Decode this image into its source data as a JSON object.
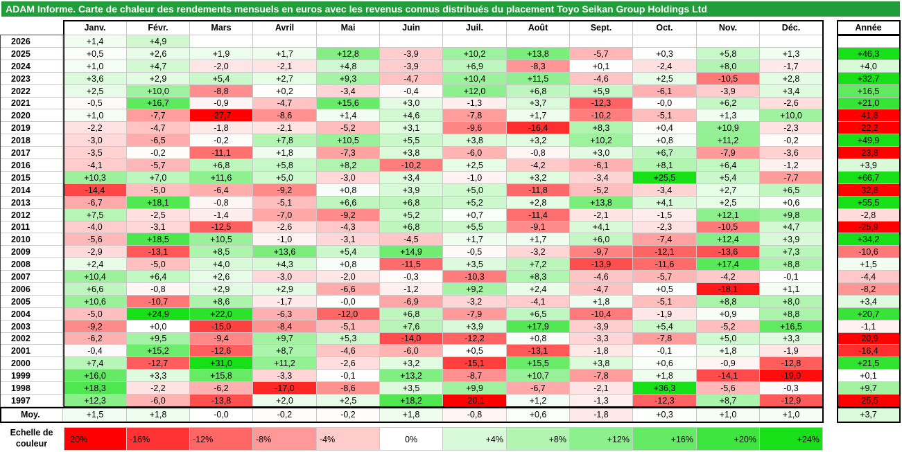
{
  "chart_data": {
    "type": "heatmap",
    "title": "ADAM Informe. Carte de chaleur des rendements mensuels en euros avec les revenus connus distribués du placement Toyo Seikan Group Holdings Ltd",
    "columns": [
      "Janv.",
      "Févr.",
      "Mars",
      "Avril",
      "Mai",
      "Juin",
      "Juil.",
      "Août",
      "Sept.",
      "Oct.",
      "Nov.",
      "Déc."
    ],
    "annual_header": "Année",
    "rows": [
      {
        "year": "2026",
        "values": [
          "+1,4",
          "+4,9",
          "",
          "",
          "",
          "",
          "",
          "",
          "",
          "",
          "",
          ""
        ],
        "annual": ""
      },
      {
        "year": "2025",
        "values": [
          "+0,5",
          "+2,6",
          "+1,9",
          "+1,7",
          "+12,8",
          "-3,9",
          "+10,2",
          "+13,8",
          "-5,7",
          "+0,3",
          "+5,8",
          "+1,3"
        ],
        "annual": "+46,3"
      },
      {
        "year": "2024",
        "values": [
          "+1,0",
          "+4,7",
          "-2,0",
          "-2,1",
          "+4,8",
          "-3,9",
          "+6,9",
          "-8,3",
          "+0,1",
          "-2,4",
          "+8,0",
          "-1,7"
        ],
        "annual": "+4,0"
      },
      {
        "year": "2023",
        "values": [
          "+3,6",
          "+2,9",
          "+5,4",
          "+2,7",
          "+9,3",
          "-4,7",
          "+10,4",
          "+11,5",
          "-4,6",
          "+2,5",
          "-10,5",
          "+2,8"
        ],
        "annual": "+32,7"
      },
      {
        "year": "2022",
        "values": [
          "+2,5",
          "+10,0",
          "-8,8",
          "+0,2",
          "-3,4",
          "-0,4",
          "+12,0",
          "+6,8",
          "+5,9",
          "-6,1",
          "-3,9",
          "+3,4"
        ],
        "annual": "+16,5"
      },
      {
        "year": "2021",
        "values": [
          "-0,5",
          "+16,7",
          "-0,9",
          "-4,7",
          "+15,6",
          "+3,0",
          "-1,3",
          "+3,7",
          "-12,3",
          "-0,0",
          "+6,2",
          "-2,6"
        ],
        "annual": "+21,0"
      },
      {
        "year": "2020",
        "values": [
          "+1,0",
          "-7,7",
          "-27,7",
          "-8,6",
          "+1,4",
          "+4,6",
          "-7,8",
          "+1,7",
          "-10,2",
          "-5,1",
          "+1,3",
          "+10,0"
        ],
        "annual": "-41,8"
      },
      {
        "year": "2019",
        "values": [
          "-2,2",
          "-4,7",
          "-1,8",
          "-2,1",
          "-5,2",
          "+3,1",
          "-9,6",
          "-16,4",
          "+8,3",
          "+0,4",
          "+10,9",
          "-2,3"
        ],
        "annual": "-22,2"
      },
      {
        "year": "2018",
        "values": [
          "-3,0",
          "-6,5",
          "-0,2",
          "+7,8",
          "+10,5",
          "+5,5",
          "+3,8",
          "+3,2",
          "+10,2",
          "+0,8",
          "+11,2",
          "-0,2"
        ],
        "annual": "+49,9"
      },
      {
        "year": "2017",
        "values": [
          "-3,5",
          "-0,2",
          "-11,1",
          "+1,8",
          "-7,3",
          "+3,8",
          "-6,0",
          "-0,8",
          "+3,0",
          "+6,7",
          "-7,9",
          "-3,6"
        ],
        "annual": "-23,8"
      },
      {
        "year": "2016",
        "values": [
          "-4,1",
          "-5,7",
          "+6,8",
          "+5,8",
          "+8,2",
          "-10,2",
          "+2,5",
          "-4,2",
          "-6,1",
          "+8,1",
          "+6,4",
          "-1,2"
        ],
        "annual": "+3,9"
      },
      {
        "year": "2015",
        "values": [
          "+10,3",
          "+7,0",
          "+11,6",
          "+5,0",
          "-3,0",
          "+3,4",
          "-1,0",
          "+3,2",
          "-3,4",
          "+25,5",
          "+5,4",
          "-7,7"
        ],
        "annual": "+66,7"
      },
      {
        "year": "2014",
        "values": [
          "-14,4",
          "-5,0",
          "-6,4",
          "-9,2",
          "+0,8",
          "+3,9",
          "+5,0",
          "-11,8",
          "-5,2",
          "-3,4",
          "+2,7",
          "+6,5"
        ],
        "annual": "-32,8"
      },
      {
        "year": "2013",
        "values": [
          "-6,7",
          "+18,1",
          "-0,8",
          "-5,1",
          "+6,6",
          "+6,8",
          "+5,2",
          "+2,8",
          "+13,8",
          "+4,1",
          "+2,5",
          "+0,6"
        ],
        "annual": "+55,5"
      },
      {
        "year": "2012",
        "values": [
          "+7,5",
          "-2,5",
          "-1,4",
          "-7,0",
          "-9,2",
          "+5,2",
          "+0,7",
          "-11,4",
          "-2,1",
          "-1,5",
          "+12,1",
          "+9,8"
        ],
        "annual": "-2,8"
      },
      {
        "year": "2011",
        "values": [
          "-4,0",
          "-3,1",
          "-12,5",
          "-2,6",
          "-4,3",
          "+6,8",
          "+5,5",
          "-9,1",
          "+4,1",
          "-2,3",
          "-10,5",
          "+4,7"
        ],
        "annual": "-25,9"
      },
      {
        "year": "2010",
        "values": [
          "-5,6",
          "+18,5",
          "+10,5",
          "-1,0",
          "-3,1",
          "-4,5",
          "+1,7",
          "+1,7",
          "+6,0",
          "-7,4",
          "+12,4",
          "+3,9"
        ],
        "annual": "+34,2"
      },
      {
        "year": "2009",
        "values": [
          "-2,9",
          "-13,1",
          "+8,5",
          "+13,6",
          "+5,4",
          "+14,9",
          "-0,5",
          "-3,2",
          "-9,7",
          "-12,1",
          "-13,6",
          "+7,3"
        ],
        "annual": "-10,6"
      },
      {
        "year": "2008",
        "values": [
          "+2,4",
          "-5,0",
          "+4,0",
          "+4,3",
          "+0,8",
          "-11,5",
          "+3,5",
          "+7,2",
          "-13,9",
          "-11,6",
          "+17,4",
          "+8,8"
        ],
        "annual": "+1,5"
      },
      {
        "year": "2007",
        "values": [
          "+10,4",
          "+6,4",
          "+2,6",
          "-3,0",
          "-2,0",
          "-0,3",
          "-10,3",
          "+8,3",
          "-4,6",
          "-5,7",
          "-4,2",
          "-0,1"
        ],
        "annual": "-4,4"
      },
      {
        "year": "2006",
        "values": [
          "+6,6",
          "-0,8",
          "+2,9",
          "+2,9",
          "-6,6",
          "-1,2",
          "+9,2",
          "+2,4",
          "-4,7",
          "+0,5",
          "-18,1",
          "+1,1"
        ],
        "annual": "-8,2"
      },
      {
        "year": "2005",
        "values": [
          "+10,6",
          "-10,7",
          "+8,6",
          "-1,7",
          "-0,0",
          "-6,9",
          "-3,2",
          "-4,1",
          "+1,8",
          "-5,1",
          "+8,8",
          "+8,0"
        ],
        "annual": "+3,4"
      },
      {
        "year": "2004",
        "values": [
          "-5,0",
          "+24,9",
          "+22,0",
          "-6,3",
          "-12,0",
          "+6,8",
          "-7,9",
          "+6,5",
          "-10,4",
          "-1,9",
          "+0,9",
          "+8,8"
        ],
        "annual": "+20,7"
      },
      {
        "year": "2003",
        "values": [
          "-9,2",
          "+0,0",
          "-15,0",
          "-8,4",
          "-5,1",
          "+7,6",
          "+3,9",
          "+17,9",
          "-3,9",
          "+5,4",
          "-5,2",
          "+16,5"
        ],
        "annual": "-1,1"
      },
      {
        "year": "2002",
        "values": [
          "-6,2",
          "+9,5",
          "-9,4",
          "+9,7",
          "+5,3",
          "-14,0",
          "-12,2",
          "+0,8",
          "-3,3",
          "-7,8",
          "+5,0",
          "+3,3"
        ],
        "annual": "-20,9"
      },
      {
        "year": "2001",
        "values": [
          "-0,4",
          "+15,2",
          "-12,6",
          "+8,7",
          "-4,6",
          "-6,0",
          "+0,5",
          "-13,1",
          "-1,8",
          "-0,1",
          "+1,8",
          "-1,9"
        ],
        "annual": "-16,4"
      },
      {
        "year": "2000",
        "values": [
          "+7,4",
          "-12,7",
          "+31,0",
          "+11,2",
          "-2,6",
          "+3,2",
          "-15,1",
          "+15,5",
          "+3,8",
          "+0,6",
          "-0,9",
          "-12,8"
        ],
        "annual": "+21,5"
      },
      {
        "year": "1999",
        "values": [
          "+16,0",
          "+3,3",
          "+15,8",
          "-3,3",
          "-0,1",
          "+13,2",
          "-8,7",
          "+10,7",
          "-7,8",
          "+1,8",
          "-14,1",
          "-19,0"
        ],
        "annual": "+0,1"
      },
      {
        "year": "1998",
        "values": [
          "+18,3",
          "-2,2",
          "-6,2",
          "-17,0",
          "-8,6",
          "+3,5",
          "+9,9",
          "-6,7",
          "-2,1",
          "+36,3",
          "-5,6",
          "-0,3"
        ],
        "annual": "+9,7"
      },
      {
        "year": "1997",
        "values": [
          "+12,3",
          "-6,0",
          "-13,8",
          "+2,0",
          "+2,5",
          "+18,2",
          "-20,1",
          "+1,2",
          "-1,3",
          "-12,3",
          "+8,7",
          "-12,9"
        ],
        "annual": "-25,5"
      }
    ],
    "average": {
      "label": "Moy.",
      "values": [
        "+1,5",
        "+1,8",
        "-0,0",
        "-0,2",
        "-0,2",
        "+1,8",
        "-0,8",
        "+0,6",
        "-1,8",
        "+0,3",
        "+1,0",
        "+1,0"
      ],
      "annual": "+3,7"
    },
    "scale": {
      "label": "Echelle de couleur",
      "steps": [
        "-20%",
        "-16%",
        "-12%",
        "-8%",
        "-4%",
        "0%",
        "+4%",
        "+8%",
        "+12%",
        "+16%",
        "+20%",
        "+24%"
      ]
    },
    "colors": {
      "title_background": "#1f9e3a",
      "negative": "#ff0000",
      "neutral": "#ffffff",
      "positive": "#18e018"
    }
  }
}
